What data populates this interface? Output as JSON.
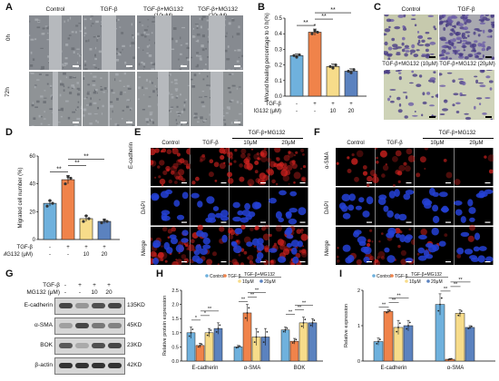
{
  "panel_letters": {
    "a": "A",
    "b": "B",
    "c": "C",
    "d": "D",
    "e": "E",
    "f": "F",
    "g": "G",
    "h": "H",
    "i": "I"
  },
  "colors": {
    "control": "#6fb1dd",
    "tgf": "#f0834a",
    "mg10": "#f7dc8a",
    "mg20": "#5b82bf",
    "scratch_bg": "#7a7e84",
    "transwell_bg": "#c9cdb1",
    "if_bg": "#000000",
    "ecad_red": "#d0221f",
    "dapi_blue": "#2441d6"
  },
  "panelA": {
    "cols": [
      "Control",
      "TGF-β",
      "TGF-β+MG132 (10μM)",
      "TGF-β+MG132 (20μM)"
    ],
    "rows": [
      "0h",
      "72h"
    ]
  },
  "panelC": {
    "top": [
      "Control",
      "TGF-β"
    ],
    "bottom": [
      "TGF-β+MG132 (10μM)",
      "TGF-β+MG132 (20μM)"
    ]
  },
  "panelE": {
    "cols": [
      "Control",
      "TGF-β",
      "10μM",
      "20μM"
    ],
    "group": "TGF-β+MG132",
    "rows": [
      "E-cadherin",
      "DAPI",
      "Merge"
    ]
  },
  "panelF": {
    "cols": [
      "Control",
      "TGF-β",
      "10μM",
      "20μM"
    ],
    "group": "TGF-β+MG132",
    "rows": [
      "α-SMA",
      "DAPI",
      "Merge"
    ]
  },
  "panelG": {
    "tgf_label": "TGF-β",
    "mg_label": "MG132 (μM)",
    "tgf_row": [
      "-",
      "+",
      "+",
      "+"
    ],
    "mg_row": [
      "-",
      "-",
      "10",
      "20"
    ],
    "bands": [
      {
        "name": "E-cadherin",
        "kda": "135KD"
      },
      {
        "name": "α-SMA",
        "kda": "45KD"
      },
      {
        "name": "BOK",
        "kda": "23KD"
      },
      {
        "name": "β-actin",
        "kda": "42KD"
      }
    ]
  },
  "treatment_rows": {
    "tgf_label": "TGF-β",
    "mg_label": "MG132 (μM)",
    "tgf": [
      "-",
      "+",
      "+",
      "+"
    ],
    "mg": [
      "-",
      "-",
      "10",
      "20"
    ]
  },
  "chart_data": [
    {
      "panel": "B",
      "type": "bar",
      "ylabel": "Wound healing percentage to 0 h(%)",
      "ylim": [
        0,
        0.5
      ],
      "yticks": [
        "0.0",
        "0.1",
        "0.2",
        "0.3",
        "0.4",
        "0.5"
      ],
      "categories": [
        "Control",
        "TGF-β",
        "TGF-β+MG132 10μM",
        "TGF-β+MG132 20μM"
      ],
      "values": [
        0.26,
        0.41,
        0.19,
        0.16
      ],
      "errors": [
        0.01,
        0.02,
        0.015,
        0.015
      ],
      "points": [
        [
          0.26,
          0.25,
          0.265
        ],
        [
          0.4,
          0.42,
          0.41
        ],
        [
          0.19,
          0.18,
          0.2
        ],
        [
          0.16,
          0.15,
          0.17
        ]
      ],
      "sig": [
        {
          "from": 0,
          "to": 1,
          "label": "**"
        },
        {
          "from": 1,
          "to": 2,
          "label": "**"
        },
        {
          "from": 1,
          "to": 3,
          "label": "**"
        }
      ],
      "star_on_bar": {
        "index": 1,
        "label": "*"
      }
    },
    {
      "panel": "D",
      "type": "bar",
      "ylabel": "Migrated cell number (%)",
      "ylim": [
        0,
        60
      ],
      "yticks": [
        "0",
        "20",
        "40",
        "60"
      ],
      "categories": [
        "Control",
        "TGF-β",
        "TGF-β+MG132 10μM",
        "TGF-β+MG132 20μM"
      ],
      "values": [
        26,
        43,
        15,
        13
      ],
      "errors": [
        2,
        3,
        2,
        1.5
      ],
      "points": [
        [
          24,
          28,
          26
        ],
        [
          40,
          45,
          44
        ],
        [
          13,
          17,
          15
        ],
        [
          12,
          14,
          13
        ]
      ],
      "sig": [
        {
          "from": 0,
          "to": 1,
          "label": "**"
        },
        {
          "from": 1,
          "to": 2,
          "label": "**"
        },
        {
          "from": 1,
          "to": 3,
          "label": "**"
        }
      ]
    },
    {
      "panel": "H",
      "type": "bar",
      "ylabel": "Relative protein expression",
      "ylim": [
        0,
        2.5
      ],
      "yticks": [
        "0.0",
        "0.5",
        "1.0",
        "1.5",
        "2.0",
        "2.5"
      ],
      "legend": [
        "Control",
        "TGF-β",
        "10μM",
        "20μM"
      ],
      "legend_group": "TGF-β+MG132",
      "categories": [
        "E-cadherin",
        "α-SMA",
        "BOK"
      ],
      "series": [
        {
          "name": "Control",
          "values": [
            1.0,
            0.5,
            1.1
          ]
        },
        {
          "name": "TGF-β",
          "values": [
            0.55,
            1.7,
            0.7
          ]
        },
        {
          "name": "10μM",
          "values": [
            1.0,
            0.85,
            1.35
          ]
        },
        {
          "name": "20μM",
          "values": [
            1.15,
            0.85,
            1.35
          ]
        }
      ],
      "errors": [
        [
          0.2,
          0.05,
          0.1
        ],
        [
          0.08,
          0.3,
          0.1
        ],
        [
          0.15,
          0.3,
          0.2
        ],
        [
          0.2,
          0.3,
          0.15
        ]
      ],
      "sig_labels": [
        "*",
        "*",
        "**",
        "**",
        "**",
        "**",
        "**",
        "**",
        "**",
        "**",
        "**"
      ]
    },
    {
      "panel": "I",
      "type": "bar",
      "ylabel": "Relative expression",
      "ylim": [
        0,
        2
      ],
      "yticks": [
        "0",
        "1",
        "2"
      ],
      "legend": [
        "Control",
        "TGF-β",
        "10μM",
        "20μM"
      ],
      "legend_group": "TGF-β+MG132",
      "categories": [
        "E-cadherin",
        "α-SMA"
      ],
      "series": [
        {
          "name": "Control",
          "values": [
            0.55,
            1.6
          ]
        },
        {
          "name": "TGF-β",
          "values": [
            1.4,
            0.05
          ]
        },
        {
          "name": "10μM",
          "values": [
            0.95,
            1.35
          ]
        },
        {
          "name": "20μM",
          "values": [
            1.0,
            0.95
          ]
        }
      ],
      "errors": [
        [
          0.1,
          0.3
        ],
        [
          0.05,
          0.02
        ],
        [
          0.2,
          0.1
        ],
        [
          0.15,
          0.05
        ]
      ],
      "sig_labels": [
        "**",
        "**",
        "**",
        "**",
        "**",
        "**",
        "**"
      ]
    }
  ]
}
